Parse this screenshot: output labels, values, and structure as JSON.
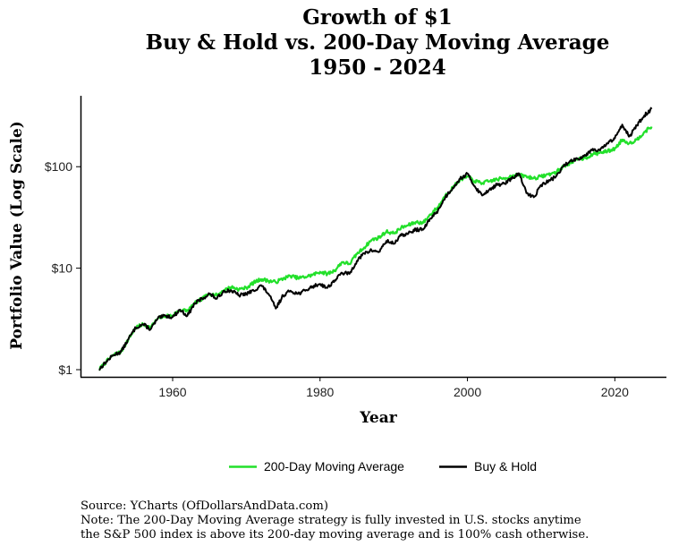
{
  "chart_data": {
    "type": "line",
    "title": [
      "Growth of $1",
      "Buy & Hold vs. 200-Day Moving Average",
      "1950 - 2024"
    ],
    "xlabel": "Year",
    "ylabel": "Portfolio Value (Log Scale)",
    "xlim": [
      1947.5,
      2027
    ],
    "ylim": [
      0.85,
      500
    ],
    "y_scale": "log",
    "x_ticks": [
      1960,
      1980,
      2000,
      2020
    ],
    "x_tick_labels": [
      "1960",
      "1980",
      "2000",
      "2020"
    ],
    "y_ticks": [
      1,
      10,
      100
    ],
    "y_tick_labels": [
      "$1",
      "$10",
      "$100"
    ],
    "grid": false,
    "legend_position": "bottom",
    "series": [
      {
        "name": "200-Day Moving Average",
        "color": "#22e02a",
        "x": [
          1950,
          1951,
          1952,
          1953,
          1954,
          1955,
          1956,
          1957,
          1958,
          1959,
          1960,
          1961,
          1962,
          1963,
          1964,
          1965,
          1966,
          1967,
          1968,
          1969,
          1970,
          1971,
          1972,
          1973,
          1974,
          1975,
          1976,
          1977,
          1978,
          1979,
          1980,
          1981,
          1982,
          1983,
          1984,
          1985,
          1986,
          1987,
          1988,
          1989,
          1990,
          1991,
          1992,
          1993,
          1994,
          1995,
          1996,
          1997,
          1998,
          1999,
          2000,
          2001,
          2002,
          2003,
          2004,
          2005,
          2006,
          2007,
          2008,
          2009,
          2010,
          2011,
          2012,
          2013,
          2014,
          2015,
          2016,
          2017,
          2018,
          2019,
          2020,
          2021,
          2022,
          2023,
          2024,
          2025
        ],
        "y": [
          1.0,
          1.2,
          1.4,
          1.5,
          2.0,
          2.6,
          2.8,
          2.6,
          3.2,
          3.4,
          3.4,
          3.9,
          3.8,
          4.5,
          5.0,
          5.6,
          5.4,
          6.1,
          6.5,
          6.2,
          6.4,
          7.2,
          7.8,
          7.5,
          7.3,
          7.9,
          8.4,
          8.0,
          8.2,
          8.6,
          9.2,
          8.8,
          9.5,
          11.5,
          11.0,
          13.8,
          16.0,
          19.0,
          20.0,
          23.0,
          22.0,
          25.0,
          26.5,
          28.5,
          28.0,
          34.0,
          40.0,
          52.0,
          62.0,
          75.0,
          80.0,
          72.0,
          69.0,
          72.0,
          75.0,
          77.0,
          81.0,
          83.0,
          80.0,
          77.0,
          80.0,
          84.0,
          88.0,
          100.0,
          110.0,
          118.0,
          122.0,
          132.0,
          138.0,
          142.0,
          150.0,
          185.0,
          170.0,
          185.0,
          220.0,
          248.0
        ]
      },
      {
        "name": "Buy & Hold",
        "color": "#000000",
        "x": [
          1950,
          1951,
          1952,
          1953,
          1954,
          1955,
          1956,
          1957,
          1958,
          1959,
          1960,
          1961,
          1962,
          1963,
          1964,
          1965,
          1966,
          1967,
          1968,
          1969,
          1970,
          1971,
          1972,
          1973,
          1974,
          1975,
          1976,
          1977,
          1978,
          1979,
          1980,
          1981,
          1982,
          1983,
          1984,
          1985,
          1986,
          1987,
          1988,
          1989,
          1990,
          1991,
          1992,
          1993,
          1994,
          1995,
          1996,
          1997,
          1998,
          1999,
          2000,
          2001,
          2002,
          2003,
          2004,
          2005,
          2006,
          2007,
          2008,
          2009,
          2010,
          2011,
          2012,
          2013,
          2014,
          2015,
          2016,
          2017,
          2018,
          2019,
          2020,
          2021,
          2022,
          2023,
          2024,
          2025
        ],
        "y": [
          1.0,
          1.2,
          1.4,
          1.5,
          2.0,
          2.6,
          2.8,
          2.5,
          3.2,
          3.4,
          3.3,
          3.9,
          3.4,
          4.5,
          5.0,
          5.6,
          5.0,
          6.0,
          6.0,
          5.4,
          5.6,
          6.0,
          6.8,
          5.6,
          4.0,
          5.4,
          6.0,
          5.6,
          6.0,
          6.6,
          7.0,
          6.4,
          7.6,
          9.0,
          8.8,
          11.8,
          14.0,
          15.0,
          14.5,
          18.5,
          17.5,
          21.0,
          22.0,
          24.0,
          24.0,
          31.0,
          37.0,
          50.0,
          62.0,
          76.0,
          85.0,
          64.0,
          52.0,
          60.0,
          66.0,
          68.0,
          76.0,
          86.0,
          55.0,
          50.0,
          66.0,
          72.0,
          80.0,
          100.0,
          115.0,
          120.0,
          130.0,
          150.0,
          145.0,
          170.0,
          190.0,
          260.0,
          200.0,
          255.0,
          320.0,
          370.0
        ]
      }
    ],
    "legend": [
      "200-Day Moving Average",
      "Buy & Hold"
    ],
    "source": "Source: YCharts (OfDollarsAndData.com)",
    "note": [
      "Note: The 200-Day Moving Average strategy is fully invested in U.S. stocks anytime",
      "the S&P 500 index is above its 200-day moving average and is 100% cash otherwise."
    ]
  }
}
